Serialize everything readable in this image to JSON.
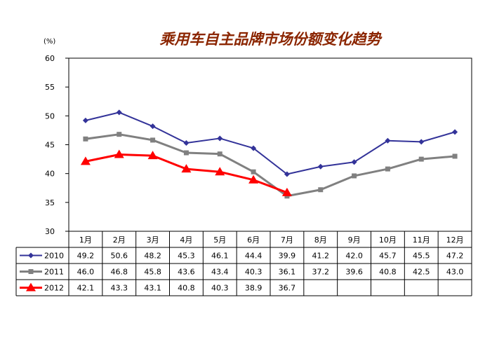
{
  "chart_data": {
    "type": "line",
    "title": "乘用车自主品牌市场份额变化趋势",
    "unit_label": "(%)",
    "categories": [
      "1月",
      "2月",
      "3月",
      "4月",
      "5月",
      "6月",
      "7月",
      "8月",
      "9月",
      "10月",
      "11月",
      "12月"
    ],
    "ylim": [
      30,
      60
    ],
    "yticks": [
      30,
      35,
      40,
      45,
      50,
      55,
      60
    ],
    "grid": false,
    "legend": "data-table-left",
    "series": [
      {
        "name": "2010",
        "color": "#333399",
        "marker": "diamond",
        "values": [
          49.2,
          50.6,
          48.2,
          45.3,
          46.1,
          44.4,
          39.9,
          41.2,
          42.0,
          45.7,
          45.5,
          47.2
        ],
        "labels": [
          "49.2",
          "50.6",
          "48.2",
          "45.3",
          "46.1",
          "44.4",
          "39.9",
          "41.2",
          "42.0",
          "45.7",
          "45.5",
          "47.2"
        ]
      },
      {
        "name": "2011",
        "color": "#808080",
        "marker": "square",
        "values": [
          46.0,
          46.8,
          45.8,
          43.6,
          43.4,
          40.3,
          36.1,
          37.2,
          39.6,
          40.8,
          42.5,
          43.0
        ],
        "labels": [
          "46.0",
          "46.8",
          "45.8",
          "43.6",
          "43.4",
          "40.3",
          "36.1",
          "37.2",
          "39.6",
          "40.8",
          "42.5",
          "43.0"
        ]
      },
      {
        "name": "2012",
        "color": "#ff0000",
        "marker": "triangle",
        "values": [
          42.1,
          43.3,
          43.1,
          40.8,
          40.3,
          38.9,
          36.7,
          null,
          null,
          null,
          null,
          null
        ],
        "labels": [
          "42.1",
          "43.3",
          "43.1",
          "40.8",
          "40.3",
          "38.9",
          "36.7",
          "",
          "",
          "",
          "",
          ""
        ]
      }
    ]
  }
}
